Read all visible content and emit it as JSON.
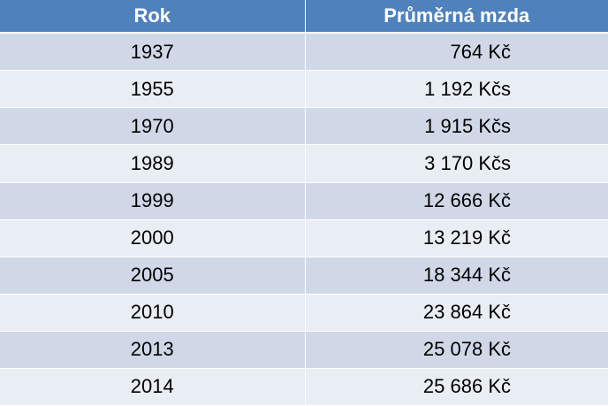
{
  "table": {
    "header": [
      "Rok",
      "Průměrná mzda"
    ],
    "rows": [
      [
        "1937",
        "764 Kč"
      ],
      [
        "1955",
        "1 192 Kčs"
      ],
      [
        "1970",
        "1 915 Kčs"
      ],
      [
        "1989",
        "3 170 Kčs"
      ],
      [
        "1999",
        "12 666 Kč"
      ],
      [
        "2000",
        "13 219 Kč"
      ],
      [
        "2005",
        "18 344 Kč"
      ],
      [
        "2010",
        "23 864 Kč"
      ],
      [
        "2013",
        "25 078 Kč"
      ],
      [
        "2014",
        "25 686 Kč"
      ]
    ]
  }
}
